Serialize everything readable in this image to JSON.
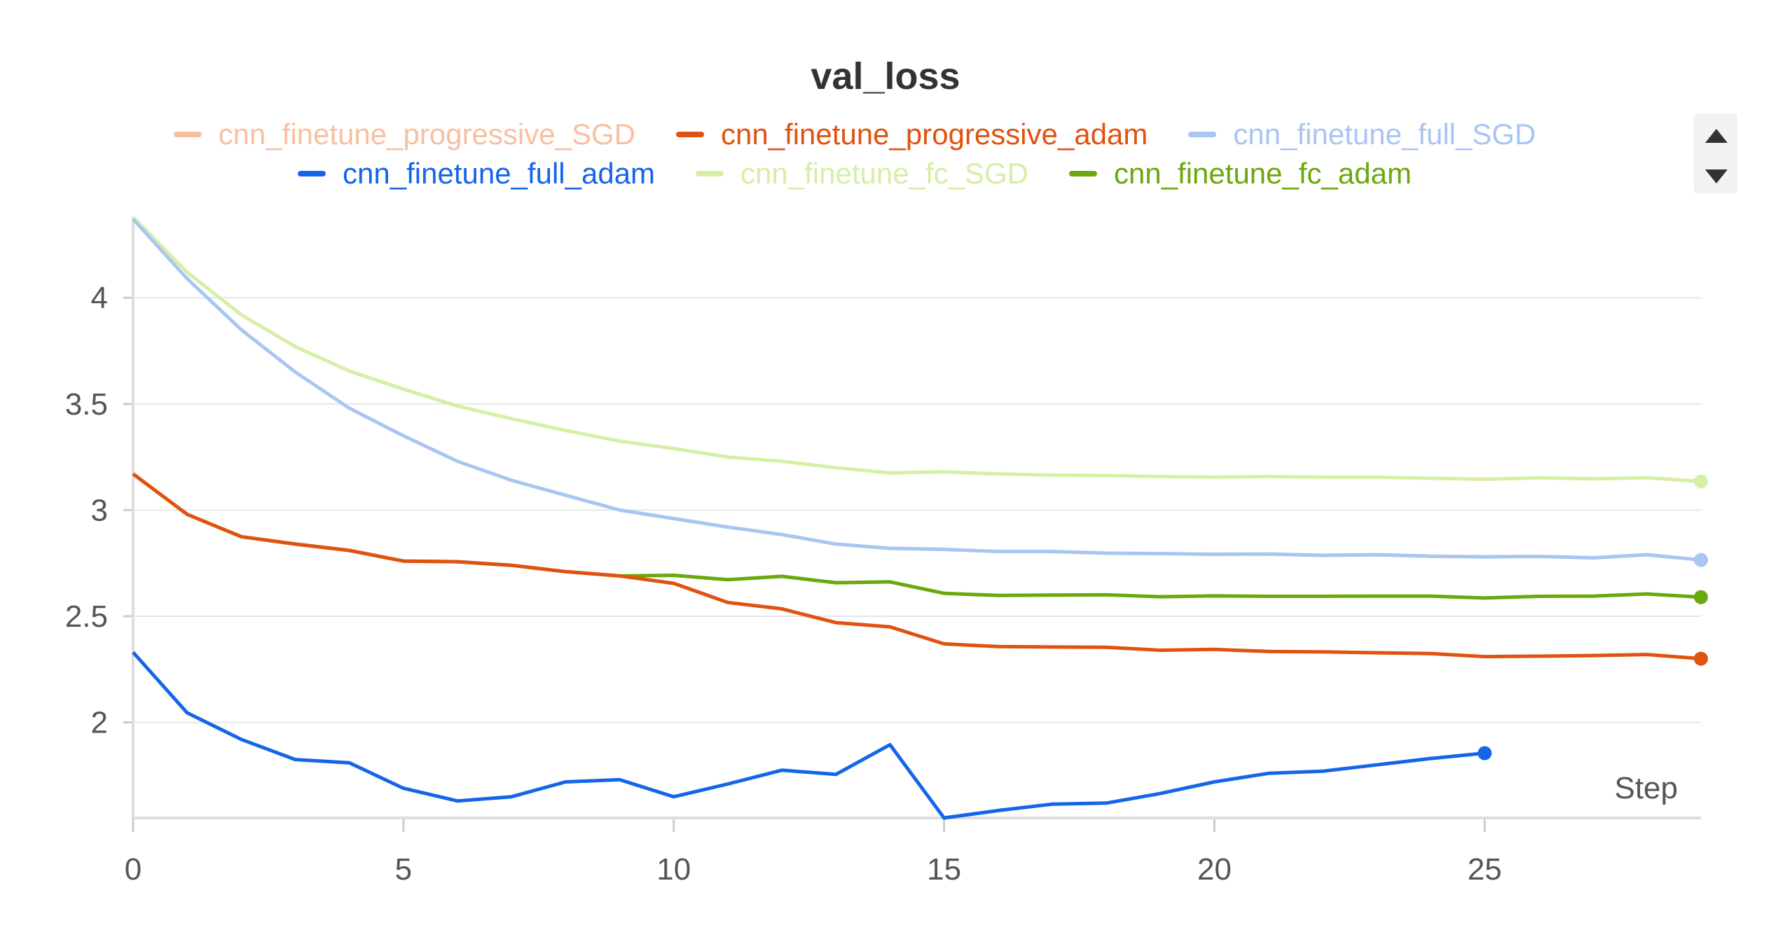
{
  "chart_data": {
    "type": "line",
    "title": "val_loss",
    "xlabel": "Step",
    "ylabel": "",
    "xlim": [
      0,
      29
    ],
    "ylim": [
      1.55,
      4.38
    ],
    "xticks": [
      "0",
      "5",
      "10",
      "15",
      "20",
      "25"
    ],
    "yticks": [
      "2",
      "2.5",
      "3",
      "3.5",
      "4"
    ],
    "grid": true,
    "legend_position": "top-center",
    "series": [
      {
        "name": "cnn_finetune_progressive_SGD",
        "color": "#f8c0a0",
        "x": [],
        "y": []
      },
      {
        "name": "cnn_finetune_progressive_adam",
        "color": "#e0520f",
        "x": [
          0,
          1,
          2,
          3,
          4,
          5,
          6,
          7,
          8,
          9,
          10,
          11,
          12,
          13,
          14,
          15,
          16,
          17,
          18,
          19,
          20,
          21,
          22,
          23,
          24,
          25,
          26,
          27,
          28,
          29
        ],
        "y": [
          3.17,
          2.98,
          2.875,
          2.84,
          2.81,
          2.76,
          2.757,
          2.74,
          2.71,
          2.69,
          2.655,
          2.565,
          2.535,
          2.47,
          2.45,
          2.37,
          2.357,
          2.355,
          2.354,
          2.34,
          2.344,
          2.334,
          2.332,
          2.328,
          2.324,
          2.31,
          2.312,
          2.315,
          2.32,
          2.3
        ]
      },
      {
        "name": "cnn_finetune_full_SGD",
        "color": "#a9c5f2",
        "x": [
          0,
          1,
          2,
          3,
          4,
          5,
          6,
          7,
          8,
          9,
          10,
          11,
          12,
          13,
          14,
          15,
          16,
          17,
          18,
          19,
          20,
          21,
          22,
          23,
          24,
          25,
          26,
          27,
          28,
          29
        ],
        "y": [
          4.37,
          4.09,
          3.85,
          3.65,
          3.48,
          3.35,
          3.23,
          3.14,
          3.07,
          3.0,
          2.96,
          2.92,
          2.885,
          2.84,
          2.82,
          2.815,
          2.805,
          2.805,
          2.797,
          2.795,
          2.792,
          2.793,
          2.787,
          2.79,
          2.783,
          2.78,
          2.782,
          2.775,
          2.79,
          2.765
        ]
      },
      {
        "name": "cnn_finetune_full_adam",
        "color": "#1565e8",
        "x": [
          0,
          1,
          2,
          3,
          4,
          5,
          6,
          7,
          8,
          9,
          10,
          11,
          12,
          13,
          14,
          15,
          16,
          17,
          18,
          19,
          20,
          21,
          22,
          23,
          24,
          25
        ],
        "y": [
          2.33,
          2.045,
          1.92,
          1.825,
          1.81,
          1.69,
          1.63,
          1.65,
          1.72,
          1.73,
          1.65,
          1.71,
          1.775,
          1.755,
          1.895,
          1.55,
          1.585,
          1.615,
          1.62,
          1.665,
          1.72,
          1.76,
          1.77,
          1.8,
          1.83,
          1.855
        ]
      },
      {
        "name": "cnn_finetune_fc_SGD",
        "color": "#d6efa6",
        "x": [
          0,
          1,
          2,
          3,
          4,
          5,
          6,
          7,
          8,
          9,
          10,
          11,
          12,
          13,
          14,
          15,
          16,
          17,
          18,
          19,
          20,
          21,
          22,
          23,
          24,
          25,
          26,
          27,
          28,
          29
        ],
        "y": [
          4.38,
          4.12,
          3.92,
          3.77,
          3.655,
          3.57,
          3.49,
          3.43,
          3.375,
          3.325,
          3.29,
          3.25,
          3.23,
          3.2,
          3.175,
          3.18,
          3.17,
          3.165,
          3.163,
          3.158,
          3.155,
          3.158,
          3.155,
          3.155,
          3.15,
          3.145,
          3.152,
          3.147,
          3.152,
          3.135
        ]
      },
      {
        "name": "cnn_finetune_fc_adam",
        "color": "#6aa80c",
        "x": [
          0,
          1,
          2,
          3,
          4,
          5,
          6,
          7,
          8,
          9,
          10,
          11,
          12,
          13,
          14,
          15,
          16,
          17,
          18,
          19,
          20,
          21,
          22,
          23,
          24,
          25,
          26,
          27,
          28,
          29
        ],
        "y": [
          3.17,
          2.98,
          2.875,
          2.84,
          2.81,
          2.76,
          2.757,
          2.74,
          2.71,
          2.69,
          2.693,
          2.672,
          2.688,
          2.658,
          2.662,
          2.608,
          2.598,
          2.6,
          2.601,
          2.592,
          2.596,
          2.594,
          2.594,
          2.595,
          2.595,
          2.586,
          2.594,
          2.595,
          2.605,
          2.59
        ]
      }
    ]
  },
  "ui": {
    "scroll_up_icon": "triangle-up",
    "scroll_down_icon": "triangle-down"
  }
}
